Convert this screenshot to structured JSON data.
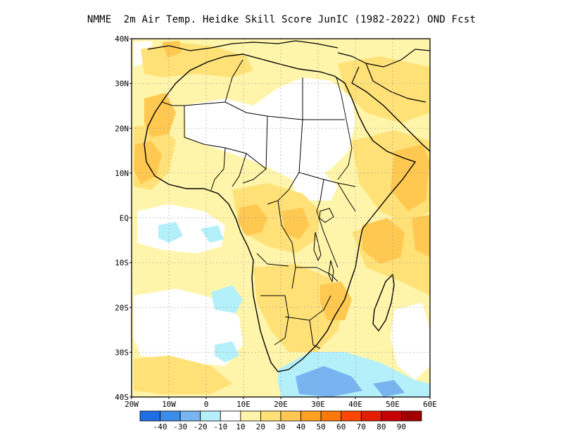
{
  "title": "NMME  2m Air Temp. Heidke Skill Score JunIC (1982-2022) OND Fcst",
  "map": {
    "lon_range": [
      -20,
      60
    ],
    "lat_range": [
      -40,
      40
    ],
    "gridlines": "dotted",
    "lon_ticks": [
      {
        "value": -20,
        "label": "20W"
      },
      {
        "value": -10,
        "label": "10W"
      },
      {
        "value": 0,
        "label": "0"
      },
      {
        "value": 10,
        "label": "10E"
      },
      {
        "value": 20,
        "label": "20E"
      },
      {
        "value": 30,
        "label": "30E"
      },
      {
        "value": 40,
        "label": "40E"
      },
      {
        "value": 50,
        "label": "50E"
      },
      {
        "value": 60,
        "label": "60E"
      }
    ],
    "lat_ticks": [
      {
        "value": 40,
        "label": "40N"
      },
      {
        "value": 30,
        "label": "30N"
      },
      {
        "value": 20,
        "label": "20N"
      },
      {
        "value": 10,
        "label": "10N"
      },
      {
        "value": 0,
        "label": "EQ"
      },
      {
        "value": -10,
        "label": "10S"
      },
      {
        "value": -20,
        "label": "20S"
      },
      {
        "value": -30,
        "label": "30S"
      },
      {
        "value": -40,
        "label": "40S"
      }
    ]
  },
  "colorbar": {
    "colors": [
      "#1e6ee6",
      "#3c8ceb",
      "#78b4f0",
      "#b4f0fa",
      "#ffffff",
      "#fff5aa",
      "#ffe178",
      "#ffc850",
      "#ffa01e",
      "#ff780a",
      "#ff4600",
      "#e61e00",
      "#c80000",
      "#a00000"
    ],
    "labels": [
      "-40",
      "-30",
      "-20",
      "-10",
      "10",
      "20",
      "30",
      "40",
      "50",
      "60",
      "70",
      "80",
      "90"
    ]
  },
  "colors": {
    "land_outline": "#000000",
    "light_orange": "#ffe178",
    "orange": "#ffc850",
    "deep_orange": "#ffa01e",
    "pale_yellow": "#fff5aa",
    "light_blue": "#b4f0fa",
    "mid_blue": "#78b4f0"
  }
}
